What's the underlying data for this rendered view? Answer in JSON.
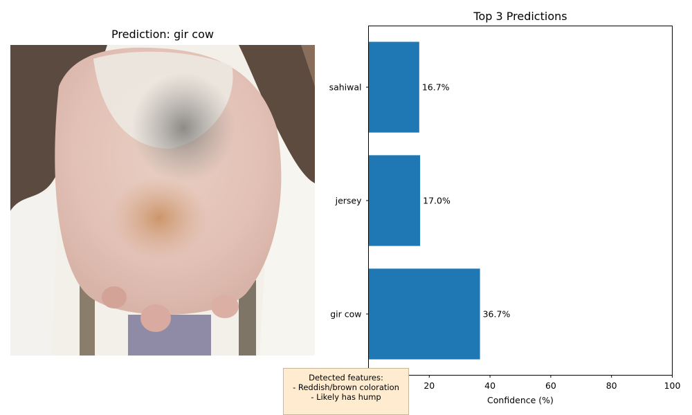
{
  "left_panel": {
    "title": "Prediction: gir cow",
    "image_icon": "cow-udder-photo"
  },
  "features_box": {
    "heading": "Detected features:",
    "lines": [
      "- Reddish/brown coloration",
      "- Likely has hump"
    ],
    "background": "#ffecd0"
  },
  "chart_data": {
    "type": "bar",
    "orientation": "horizontal",
    "title": "Top 3 Predictions",
    "xlabel": "Confidence (%)",
    "ylabel": "",
    "categories": [
      "gir cow",
      "jersey",
      "sahiwal"
    ],
    "values": [
      36.7,
      17.0,
      16.7
    ],
    "data_labels": [
      "36.7%",
      "17.0%",
      "16.7%"
    ],
    "xlim": [
      0,
      100
    ],
    "xticks": [
      0,
      20,
      40,
      60,
      80,
      100
    ],
    "grid": false,
    "legend": "none",
    "bar_color": "#1f77b4"
  }
}
